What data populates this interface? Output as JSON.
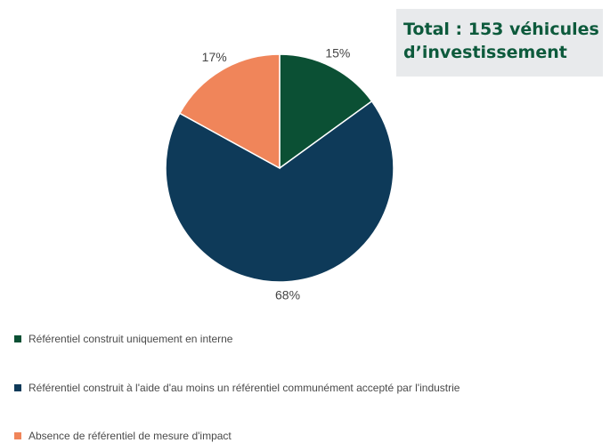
{
  "total": {
    "line1": "Total : 153 véhicules",
    "line2": "d’investissement"
  },
  "colors": {
    "internal": "#0b5034",
    "industry": "#0e3a59",
    "none": "#f0855a"
  },
  "chart_data": {
    "type": "pie",
    "title": "",
    "slices": [
      {
        "name": "Référentiel construit uniquement en interne",
        "value": 15,
        "label": "15%",
        "color": "#0b5034"
      },
      {
        "name": "Référentiel construit à l'aide d'au moins un référentiel communément accepté par l'industrie",
        "value": 68,
        "label": "68%",
        "color": "#0e3a59"
      },
      {
        "name": "Absence de référentiel de mesure d'impact",
        "value": 17,
        "label": "17%",
        "color": "#f0855a"
      }
    ],
    "legend_position": "bottom-left"
  }
}
